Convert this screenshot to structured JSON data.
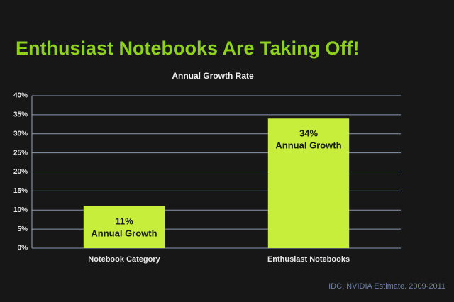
{
  "chart_data": {
    "type": "bar",
    "title": "Enthusiast Notebooks Are Taking Off!",
    "subtitle": "Annual Growth Rate",
    "categories": [
      "Notebook Category",
      "Enthusiast Notebooks"
    ],
    "values": [
      11,
      34
    ],
    "value_labels": [
      "11%",
      "34%"
    ],
    "annotations": [
      "Annual Growth",
      "Annual Growth"
    ],
    "color": "#c6ee3a",
    "ylim": [
      0,
      40
    ],
    "yticks": [
      {
        "value": 0,
        "label": "0%"
      },
      {
        "value": 5,
        "label": "5%"
      },
      {
        "value": 10,
        "label": "10%"
      },
      {
        "value": 15,
        "label": "15%"
      },
      {
        "value": 20,
        "label": "20%"
      },
      {
        "value": 25,
        "label": "25%"
      },
      {
        "value": 30,
        "label": "30%"
      },
      {
        "value": 35,
        "label": "35%"
      },
      {
        "value": 40,
        "label": "40%"
      }
    ],
    "grid": true,
    "source": "IDC, NVIDIA Estimate.  2009-2011"
  }
}
